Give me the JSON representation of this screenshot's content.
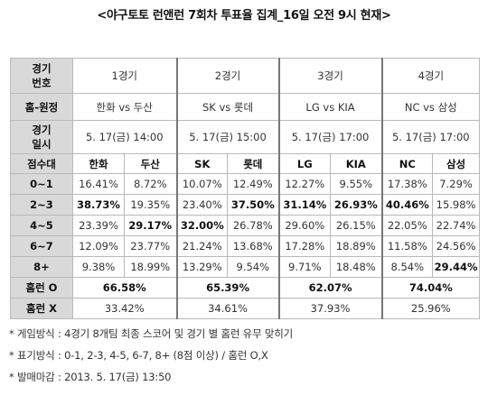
{
  "title": "<야구토토 런앤런 7회차 투표율 집계_16일 오전 9시 현재>",
  "header_labels": {
    "game_no": [
      "경기",
      "번호"
    ],
    "matchup": "홈-원정",
    "game_time": [
      "경기",
      "일시"
    ],
    "score_band": "점수대",
    "homerun_o": "홈런 O",
    "homerun_x": "홈런 X"
  },
  "games": [
    {
      "no": "1경기",
      "matchup": "한화 vs 두산",
      "datetime": "5. 17(금) 14:00",
      "teams": [
        "한화",
        "두산"
      ]
    },
    {
      "no": "2경기",
      "matchup": "SK vs 롯데",
      "datetime": "5. 17(금) 15:00",
      "teams": [
        "SK",
        "롯데"
      ]
    },
    {
      "no": "3경기",
      "matchup": "LG vs KIA",
      "datetime": "5. 17(금) 17:00",
      "teams": [
        "LG",
        "KIA"
      ]
    },
    {
      "no": "4경기",
      "matchup": "NC vs 삼성",
      "datetime": "5. 17(금) 17:00",
      "teams": [
        "NC",
        "삼성"
      ]
    }
  ],
  "score_rows": [
    {
      "band": "0~1",
      "values": [
        "16.41%",
        "8.72%",
        "10.07%",
        "12.49%",
        "12.27%",
        "9.55%",
        "17.38%",
        "7.29%"
      ],
      "bold": [
        false,
        false,
        false,
        false,
        false,
        false,
        false,
        false
      ]
    },
    {
      "band": "2~3",
      "values": [
        "38.73%",
        "19.35%",
        "23.40%",
        "37.50%",
        "31.14%",
        "26.93%",
        "40.46%",
        "15.98%"
      ],
      "bold": [
        true,
        false,
        false,
        true,
        true,
        true,
        true,
        false
      ]
    },
    {
      "band": "4~5",
      "values": [
        "23.39%",
        "29.17%",
        "32.00%",
        "26.78%",
        "29.60%",
        "26.15%",
        "22.05%",
        "22.74%"
      ],
      "bold": [
        false,
        true,
        true,
        false,
        false,
        false,
        false,
        false
      ]
    },
    {
      "band": "6~7",
      "values": [
        "12.09%",
        "23.77%",
        "21.24%",
        "13.68%",
        "17.28%",
        "18.89%",
        "11.58%",
        "24.56%"
      ],
      "bold": [
        false,
        false,
        false,
        false,
        false,
        false,
        false,
        false
      ]
    },
    {
      "band": "8+",
      "values": [
        "9.38%",
        "18.99%",
        "13.29%",
        "9.54%",
        "9.71%",
        "18.48%",
        "8.54%",
        "29.44%"
      ],
      "bold": [
        false,
        false,
        false,
        false,
        false,
        false,
        false,
        true
      ]
    }
  ],
  "homerun_o": [
    "66.58%",
    "65.39%",
    "62.07%",
    "74.04%"
  ],
  "homerun_x": [
    "33.42%",
    "34.61%",
    "37.93%",
    "25.96%"
  ],
  "notes": [
    "* 게임방식 : 4경기 8개팀 최종 스코어 및 경기 별 홈런 유무 맞히기",
    "* 표기방식 : 0-1, 2-3, 4-5, 6-7, 8+ (8점 이상) / 홈런 O,X",
    "* 발매마감 : 2013. 5. 17(금) 13:50"
  ]
}
